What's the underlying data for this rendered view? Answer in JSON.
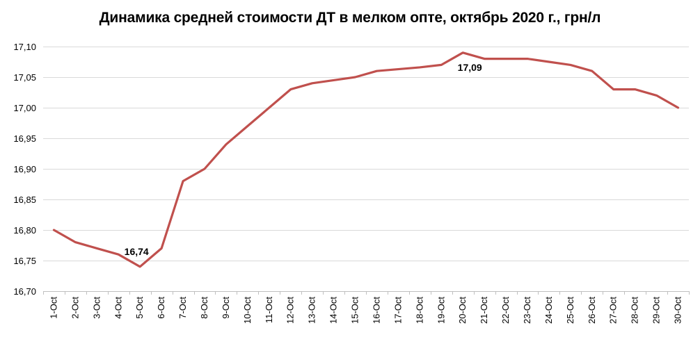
{
  "chart_data": {
    "type": "line",
    "title": "Динамика средней стоимости ДТ в мелком опте, октябрь 2020 г., грн/л",
    "xlabel": "",
    "ylabel": "",
    "ylim": [
      16.7,
      17.1
    ],
    "y_ticks": [
      "16,70",
      "16,75",
      "16,80",
      "16,85",
      "16,90",
      "16,95",
      "17,00",
      "17,05",
      "17,10"
    ],
    "y_tick_values": [
      16.7,
      16.75,
      16.8,
      16.85,
      16.9,
      16.95,
      17.0,
      17.05,
      17.1
    ],
    "grid": true,
    "categories": [
      "1-Oct",
      "2-Oct",
      "3-Oct",
      "4-Oct",
      "5-Oct",
      "6-Oct",
      "7-Oct",
      "8-Oct",
      "9-Oct",
      "10-Oct",
      "11-Oct",
      "12-Oct",
      "13-Oct",
      "14-Oct",
      "15-Oct",
      "16-Oct",
      "17-Oct",
      "18-Oct",
      "19-Oct",
      "20-Oct",
      "21-Oct",
      "22-Oct",
      "23-Oct",
      "24-Oct",
      "25-Oct",
      "26-Oct",
      "27-Oct",
      "28-Oct",
      "29-Oct",
      "30-Oct"
    ],
    "series": [
      {
        "color": "#c0504d",
        "values": [
          16.8,
          16.78,
          16.77,
          16.76,
          16.74,
          16.77,
          16.88,
          16.9,
          16.94,
          16.97,
          17.0,
          17.03,
          17.04,
          17.045,
          17.05,
          17.06,
          17.063,
          17.066,
          17.07,
          17.09,
          17.08,
          17.08,
          17.08,
          17.075,
          17.07,
          17.06,
          17.03,
          17.03,
          17.02,
          17.0
        ]
      }
    ],
    "annotations": [
      {
        "category": "5-Oct",
        "value": 16.74,
        "text": "16,74"
      },
      {
        "category": "20-Oct",
        "value": 17.09,
        "text": "17,09"
      }
    ]
  }
}
